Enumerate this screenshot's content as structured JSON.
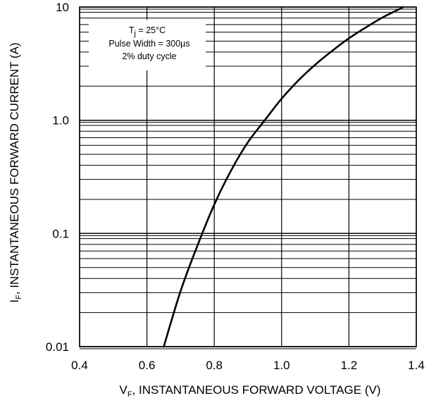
{
  "chart_data": {
    "type": "line",
    "xlabel": {
      "main": "V",
      "sub": "F",
      "rest": ", INSTANTANEOUS FORWARD VOLTAGE (V)"
    },
    "ylabel": {
      "main": "I",
      "sub": "F",
      "rest": ", INSTANTANEOUS FORWARD CURRENT (A)"
    },
    "xlim": [
      0.4,
      1.4
    ],
    "ylim": [
      0.01,
      10
    ],
    "yscale": "log",
    "x_ticks": [
      "0.4",
      "0.6",
      "0.8",
      "1.0",
      "1.2",
      "1.4"
    ],
    "y_ticks": [
      "0.01",
      "0.1",
      "1.0",
      "10"
    ],
    "grid": true,
    "annotation": {
      "line1_main": "T",
      "line1_sub": "j",
      "line1_rest": " = 25°C",
      "line2": "Pulse Width = 300µs",
      "line3": "2% duty cycle"
    },
    "series": [
      {
        "color": "#000000",
        "points": [
          [
            0.65,
            0.01
          ],
          [
            0.7,
            0.031
          ],
          [
            0.75,
            0.078
          ],
          [
            0.8,
            0.18
          ],
          [
            0.85,
            0.36
          ],
          [
            0.9,
            0.64
          ],
          [
            0.95,
            1.0
          ],
          [
            1.0,
            1.55
          ],
          [
            1.05,
            2.25
          ],
          [
            1.1,
            3.1
          ],
          [
            1.15,
            4.1
          ],
          [
            1.2,
            5.3
          ],
          [
            1.25,
            6.6
          ],
          [
            1.3,
            8.1
          ],
          [
            1.35,
            9.6
          ],
          [
            1.36,
            10.0
          ]
        ]
      }
    ]
  }
}
